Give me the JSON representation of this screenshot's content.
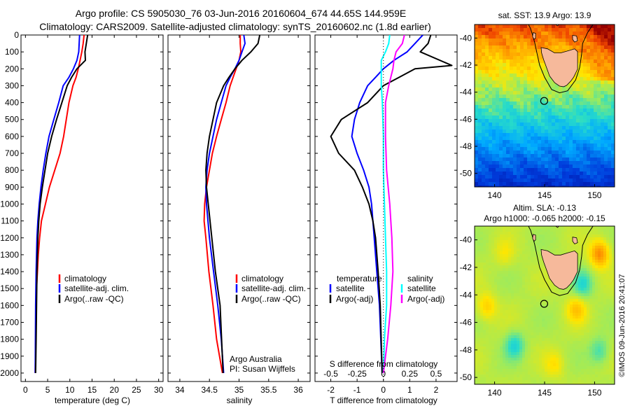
{
  "header": {
    "line1": "Argo profile: CS 5905030_76 03-Jun-2016 20160604_674 44.65S 144.959E",
    "line2": "Climatology: CARS2009. Satellite-adjusted climatology: synTS_20160602.nc (1.8d earlier)"
  },
  "side_text": "©IMOS 09-Jun-2016 20:41:07",
  "colors": {
    "climatology": "#ff0000",
    "satellite": "#0000ff",
    "argo": "#000000",
    "salinity_satellite": "#00ffff",
    "salinity_argo": "#ff00ff",
    "land": "#f6b99b"
  },
  "chart_data": [
    {
      "type": "line",
      "panel": "temperature",
      "xlabel": "temperature (deg C)",
      "ylabel": "",
      "xlim": [
        -1,
        31
      ],
      "ylim": [
        2050,
        0
      ],
      "xticks": [
        0,
        5,
        10,
        15,
        20,
        25,
        30
      ],
      "yticks": [
        0,
        100,
        200,
        300,
        400,
        500,
        600,
        700,
        800,
        900,
        1000,
        1100,
        1200,
        1300,
        1400,
        1500,
        1600,
        1700,
        1800,
        1900,
        2000
      ],
      "legend_position": "lower-middle",
      "series": [
        {
          "name": "climatology",
          "color": "#ff0000",
          "x": [
            13.2,
            13.0,
            12.7,
            12.3,
            11.9,
            11.4,
            10.7,
            9.8,
            9.2,
            8.6,
            7.8,
            6.6,
            5.4,
            4.5,
            3.6,
            3.2,
            2.9,
            2.7,
            2.5,
            2.4,
            2.3,
            2.2
          ],
          "y": [
            0,
            50,
            100,
            150,
            200,
            250,
            300,
            400,
            500,
            600,
            700,
            800,
            900,
            1000,
            1100,
            1200,
            1300,
            1400,
            1500,
            1600,
            1800,
            2000
          ]
        },
        {
          "name": "satellite-adj. clim.",
          "color": "#0000ff",
          "x": [
            12.2,
            12.1,
            12.0,
            11.6,
            10.8,
            9.8,
            8.5,
            7.5,
            6.4,
            5.3,
            4.6,
            4.0,
            3.5,
            3.1,
            2.8,
            2.6,
            2.4,
            2.3,
            2.2
          ],
          "y": [
            0,
            50,
            100,
            150,
            200,
            250,
            300,
            400,
            500,
            600,
            700,
            800,
            900,
            1000,
            1100,
            1200,
            1400,
            1600,
            2000
          ]
        },
        {
          "name": "Argo(..raw -QC)",
          "color": "#000000",
          "x": [
            14.0,
            13.7,
            13.4,
            13.5,
            11.6,
            10.4,
            9.4,
            8.2,
            7.0,
            5.9,
            5.0,
            4.4,
            3.8,
            3.3,
            3.0,
            2.8,
            2.6,
            2.5,
            2.4,
            2.3
          ],
          "y": [
            0,
            50,
            100,
            150,
            200,
            250,
            300,
            400,
            500,
            600,
            700,
            800,
            900,
            1000,
            1100,
            1200,
            1400,
            1600,
            1800,
            2000
          ]
        }
      ],
      "legend": [
        "climatology",
        "satellite-adj. clim.",
        "Argo(..raw -QC)"
      ]
    },
    {
      "type": "line",
      "panel": "salinity",
      "xlabel": "salinity",
      "xlim": [
        33.8,
        36.2
      ],
      "ylim": [
        2050,
        0
      ],
      "xticks": [
        34,
        34.5,
        35,
        35.5,
        36
      ],
      "legend_position": "lower-middle",
      "series": [
        {
          "name": "climatology",
          "color": "#ff0000",
          "x": [
            35.02,
            35.02,
            35.03,
            35.0,
            34.95,
            34.9,
            34.85,
            34.78,
            34.7,
            34.62,
            34.55,
            34.5,
            34.45,
            34.42,
            34.41,
            34.44,
            34.49,
            34.56,
            34.62,
            34.67,
            34.72
          ],
          "y": [
            0,
            50,
            100,
            150,
            200,
            250,
            300,
            400,
            500,
            600,
            700,
            800,
            900,
            1000,
            1100,
            1200,
            1400,
            1600,
            1800,
            1900,
            2000
          ]
        },
        {
          "name": "satellite-adj. clim.",
          "color": "#0000ff",
          "x": [
            35.08,
            35.1,
            35.05,
            35.0,
            34.93,
            34.85,
            34.78,
            34.7,
            34.62,
            34.56,
            34.5,
            34.46,
            34.44,
            34.45,
            34.5,
            34.57,
            34.64,
            34.7,
            34.74
          ],
          "y": [
            0,
            50,
            100,
            150,
            200,
            250,
            300,
            400,
            500,
            600,
            700,
            800,
            900,
            1000,
            1200,
            1400,
            1600,
            1800,
            2000
          ]
        },
        {
          "name": "Argo(..raw -QC)",
          "color": "#000000",
          "x": [
            35.35,
            35.32,
            35.2,
            35.05,
            34.93,
            34.83,
            34.74,
            34.62,
            34.56,
            34.5,
            34.46,
            34.44,
            34.45,
            34.48,
            34.54,
            34.6,
            34.68,
            34.73
          ],
          "y": [
            0,
            50,
            100,
            150,
            200,
            250,
            300,
            400,
            500,
            600,
            700,
            800,
            900,
            1000,
            1200,
            1400,
            1600,
            2000
          ]
        }
      ],
      "legend": [
        "climatology",
        "satellite-adj. clim.",
        "Argo(..raw -QC)"
      ],
      "annotations": [
        "Argo Australia",
        "PI: Susan Wijffels"
      ]
    },
    {
      "type": "line",
      "panel": "difference",
      "xlabel": "T difference from climatology",
      "top_xlabel": "S difference from climatology",
      "xlim": [
        -2.6,
        2.8
      ],
      "top_xlim": [
        -0.65,
        0.7
      ],
      "ylim": [
        2050,
        0
      ],
      "xticks": [
        -2,
        -1,
        0,
        1,
        2
      ],
      "top_xticks": [
        -0.5,
        -0.25,
        0,
        0.25,
        0.5
      ],
      "top_xtick_labels": [
        "-0.5",
        "-0.25",
        "0",
        "0.25",
        "0.5"
      ],
      "zero_line": "dotted",
      "legend_position": "lower-middle",
      "series": [
        {
          "name": "temperature satellite",
          "color": "#0000ff",
          "x": [
            1.5,
            1.2,
            0.9,
            0.4,
            0.0,
            -0.3,
            -0.6,
            -0.9,
            -1.1,
            -1.2,
            -1.0,
            -0.75,
            -0.55,
            -0.45,
            -0.4,
            -0.35,
            -0.25,
            -0.15,
            -0.1,
            -0.05
          ],
          "y": [
            0,
            50,
            100,
            150,
            200,
            250,
            300,
            400,
            500,
            600,
            700,
            800,
            900,
            1000,
            1100,
            1200,
            1400,
            1600,
            1800,
            2000
          ]
        },
        {
          "name": "temperature Argo(-adj)",
          "color": "#000000",
          "x": [
            1.8,
            1.7,
            1.4,
            2.6,
            1.2,
            0.6,
            0.0,
            -0.6,
            -1.6,
            -2.0,
            -1.7,
            -1.1,
            -0.8,
            -0.55,
            -0.4,
            -0.3,
            -0.2,
            -0.12,
            -0.05
          ],
          "y": [
            0,
            50,
            100,
            180,
            200,
            250,
            300,
            400,
            500,
            600,
            700,
            800,
            900,
            1000,
            1100,
            1200,
            1400,
            1600,
            2000
          ]
        },
        {
          "name": "salinity satellite",
          "color": "#00ffff",
          "x": [
            0.06,
            0.05,
            0.02,
            -0.02,
            -0.02,
            -0.02,
            -0.01,
            0.0,
            0.0,
            0.01,
            0.02,
            0.03,
            0.03,
            0.02,
            0.01,
            0.0
          ],
          "y": [
            0,
            50,
            100,
            150,
            200,
            300,
            400,
            600,
            800,
            1000,
            1200,
            1400,
            1600,
            1700,
            1800,
            2000
          ]
        },
        {
          "name": "salinity Argo(-adj)",
          "color": "#ff00ff",
          "x": [
            0.2,
            0.18,
            0.12,
            0.1,
            0.09,
            0.05,
            0.02,
            0.02,
            0.03,
            0.06,
            0.08,
            0.09,
            0.07,
            0.04,
            0.0
          ],
          "y": [
            0,
            50,
            100,
            150,
            200,
            300,
            400,
            600,
            800,
            1000,
            1200,
            1400,
            1600,
            1800,
            2000
          ]
        }
      ],
      "legend_headers": [
        "temperature",
        "salinity"
      ],
      "legend": [
        "satellite",
        "Argo(-adj)",
        "satellite",
        "Argo(-adj)"
      ]
    },
    {
      "type": "heatmap",
      "panel": "sst_map",
      "title": "sat. SST: 13.9 Argo: 13.9",
      "xlim": [
        138,
        152
      ],
      "ylim": [
        -51,
        -39
      ],
      "xticks": [
        140,
        145,
        150
      ],
      "yticks": [
        -40,
        -42,
        -44,
        -46,
        -48,
        -50
      ],
      "argo_position": [
        144.959,
        -44.65
      ]
    },
    {
      "type": "heatmap",
      "panel": "sla_map",
      "title_lines": [
        "Altim. SLA: -0.13",
        "Argo h1000: -0.065 h2000: -0.15"
      ],
      "xlim": [
        138,
        152
      ],
      "ylim": [
        -50.5,
        -39
      ],
      "xticks": [
        140,
        145,
        150
      ],
      "yticks": [
        -40,
        -42,
        -44,
        -46,
        -48,
        -50
      ],
      "argo_position": [
        144.959,
        -44.65
      ]
    }
  ]
}
